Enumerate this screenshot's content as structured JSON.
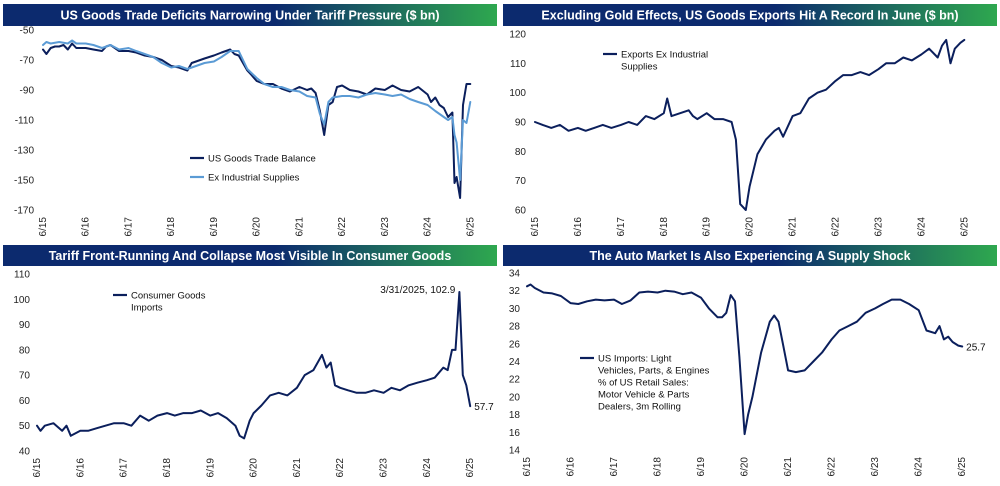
{
  "colors": {
    "title_bg_start": "#0c2a6e",
    "title_bg_end": "#2ea84f",
    "navy": "#0b1f5c",
    "light_blue": "#5b9bd5"
  },
  "chart_data": [
    {
      "type": "line",
      "title": "US Goods Trade Deficits Narrowing Under Tariff Pressure ($ bn)",
      "x_tick_labels": [
        "6/15",
        "6/16",
        "6/17",
        "6/18",
        "6/19",
        "6/20",
        "6/21",
        "6/22",
        "6/23",
        "6/24",
        "6/25"
      ],
      "x_range": [
        2015.42,
        2025.6
      ],
      "ylim": [
        -170,
        -50
      ],
      "y_ticks": [
        -50,
        -70,
        -90,
        -110,
        -130,
        -150,
        -170
      ],
      "legend_position": "center-left",
      "series": [
        {
          "name": "US Goods Trade Balance",
          "color": "navy",
          "x": [
            2015.42,
            2015.5,
            2015.6,
            2015.7,
            2015.8,
            2015.9,
            2016.0,
            2016.1,
            2016.2,
            2016.3,
            2016.42,
            2016.6,
            2016.8,
            2016.9,
            2017.0,
            2017.2,
            2017.42,
            2017.6,
            2017.8,
            2018.0,
            2018.2,
            2018.42,
            2018.6,
            2018.8,
            2018.9,
            2019.0,
            2019.2,
            2019.42,
            2019.6,
            2019.8,
            2019.9,
            2020.0,
            2020.2,
            2020.3,
            2020.42,
            2020.6,
            2020.8,
            2021.0,
            2021.2,
            2021.42,
            2021.6,
            2021.7,
            2021.8,
            2021.9,
            2022.0,
            2022.1,
            2022.2,
            2022.3,
            2022.42,
            2022.6,
            2022.8,
            2023.0,
            2023.2,
            2023.42,
            2023.6,
            2023.8,
            2024.0,
            2024.2,
            2024.42,
            2024.5,
            2024.6,
            2024.7,
            2024.8,
            2024.9,
            2025.0,
            2025.05,
            2025.1,
            2025.18,
            2025.25,
            2025.33,
            2025.42
          ],
          "values": [
            -63,
            -66,
            -62,
            -61,
            -61,
            -60,
            -63,
            -59,
            -62,
            -62,
            -62,
            -63,
            -64,
            -61,
            -60,
            -64,
            -64,
            -65,
            -67,
            -68,
            -70,
            -74,
            -75,
            -77,
            -72,
            -71,
            -69,
            -67,
            -65,
            -63,
            -66,
            -67,
            -77,
            -80,
            -84,
            -86,
            -86,
            -89,
            -91,
            -88,
            -90,
            -89,
            -92,
            -104,
            -120,
            -100,
            -98,
            -88,
            -87,
            -90,
            -91,
            -93,
            -89,
            -90,
            -87,
            -90,
            -91,
            -88,
            -93,
            -98,
            -95,
            -100,
            -102,
            -108,
            -105,
            -152,
            -148,
            -162,
            -100,
            -86,
            -86
          ]
        },
        {
          "name": "Ex Industrial Supplies",
          "color": "light_blue",
          "x": [
            2015.42,
            2015.5,
            2015.6,
            2015.8,
            2016.0,
            2016.1,
            2016.2,
            2016.42,
            2016.6,
            2016.8,
            2017.0,
            2017.2,
            2017.42,
            2017.6,
            2017.8,
            2018.0,
            2018.2,
            2018.42,
            2018.6,
            2018.8,
            2019.0,
            2019.2,
            2019.42,
            2019.6,
            2019.8,
            2020.0,
            2020.2,
            2020.42,
            2020.6,
            2020.8,
            2021.0,
            2021.2,
            2021.42,
            2021.6,
            2021.8,
            2021.9,
            2022.0,
            2022.1,
            2022.2,
            2022.42,
            2022.6,
            2022.8,
            2023.0,
            2023.2,
            2023.42,
            2023.6,
            2023.8,
            2024.0,
            2024.2,
            2024.42,
            2024.6,
            2024.8,
            2024.9,
            2025.0,
            2025.05,
            2025.1,
            2025.18,
            2025.25,
            2025.33,
            2025.42
          ],
          "values": [
            -60,
            -58,
            -59,
            -58,
            -59,
            -57,
            -59,
            -59,
            -60,
            -62,
            -60,
            -63,
            -62,
            -64,
            -66,
            -68,
            -72,
            -75,
            -74,
            -76,
            -74,
            -72,
            -71,
            -68,
            -64,
            -64,
            -76,
            -82,
            -86,
            -88,
            -88,
            -90,
            -91,
            -94,
            -95,
            -106,
            -113,
            -98,
            -95,
            -94,
            -94,
            -95,
            -93,
            -92,
            -93,
            -94,
            -93,
            -96,
            -98,
            -100,
            -104,
            -108,
            -110,
            -108,
            -120,
            -125,
            -150,
            -110,
            -112,
            -98
          ]
        }
      ],
      "annotations": []
    },
    {
      "type": "line",
      "title": "Excluding Gold Effects, US Goods Exports Hit A Record In June ($ bn)",
      "x_tick_labels": [
        "6/15",
        "6/16",
        "6/17",
        "6/18",
        "6/19",
        "6/20",
        "6/21",
        "6/22",
        "6/23",
        "6/24",
        "6/25"
      ],
      "x_range": [
        2015.42,
        2025.6
      ],
      "ylim": [
        60,
        120
      ],
      "y_ticks": [
        120,
        110,
        100,
        90,
        80,
        70,
        60
      ],
      "legend_position": "top-left",
      "series": [
        {
          "name": "Exports Ex Industrial Supplies",
          "color": "navy",
          "x": [
            2015.42,
            2015.6,
            2015.8,
            2016.0,
            2016.2,
            2016.42,
            2016.6,
            2016.8,
            2017.0,
            2017.2,
            2017.42,
            2017.6,
            2017.8,
            2018.0,
            2018.2,
            2018.42,
            2018.5,
            2018.6,
            2018.8,
            2019.0,
            2019.1,
            2019.2,
            2019.42,
            2019.6,
            2019.8,
            2020.0,
            2020.1,
            2020.2,
            2020.33,
            2020.42,
            2020.6,
            2020.8,
            2021.0,
            2021.1,
            2021.2,
            2021.42,
            2021.6,
            2021.8,
            2022.0,
            2022.2,
            2022.42,
            2022.6,
            2022.8,
            2023.0,
            2023.2,
            2023.42,
            2023.6,
            2023.8,
            2024.0,
            2024.2,
            2024.42,
            2024.6,
            2024.8,
            2024.9,
            2025.0,
            2025.1,
            2025.2,
            2025.33,
            2025.42
          ],
          "values": [
            90,
            89,
            88,
            89,
            87,
            88,
            87,
            88,
            89,
            88,
            89,
            90,
            89,
            92,
            91,
            93,
            98,
            92,
            93,
            94,
            92,
            91,
            93,
            91,
            91,
            90,
            84,
            62,
            60,
            68,
            79,
            84,
            87,
            88,
            85,
            92,
            93,
            98,
            100,
            101,
            104,
            106,
            106,
            107,
            106,
            108,
            110,
            110,
            112,
            111,
            113,
            115,
            112,
            116,
            118,
            110,
            115,
            117,
            118
          ]
        }
      ],
      "annotations": []
    },
    {
      "type": "line",
      "title": "Tariff Front-Running And Collapse Most Visible In Consumer Goods",
      "x_tick_labels": [
        "6/15",
        "6/16",
        "6/17",
        "6/18",
        "6/19",
        "6/20",
        "6/21",
        "6/22",
        "6/23",
        "6/24",
        "6/25"
      ],
      "x_range": [
        2015.42,
        2025.6
      ],
      "ylim": [
        40,
        110
      ],
      "y_ticks": [
        110,
        100,
        90,
        80,
        70,
        60,
        50,
        40
      ],
      "legend_position": "top-left",
      "series": [
        {
          "name": "Consumer Goods Imports",
          "color": "navy",
          "x": [
            2015.42,
            2015.5,
            2015.6,
            2015.8,
            2016.0,
            2016.1,
            2016.2,
            2016.42,
            2016.6,
            2016.8,
            2017.0,
            2017.2,
            2017.42,
            2017.6,
            2017.8,
            2018.0,
            2018.2,
            2018.42,
            2018.6,
            2018.8,
            2019.0,
            2019.2,
            2019.42,
            2019.6,
            2019.8,
            2020.0,
            2020.1,
            2020.2,
            2020.33,
            2020.42,
            2020.6,
            2020.8,
            2021.0,
            2021.2,
            2021.42,
            2021.6,
            2021.8,
            2022.0,
            2022.1,
            2022.2,
            2022.3,
            2022.42,
            2022.6,
            2022.8,
            2023.0,
            2023.2,
            2023.42,
            2023.6,
            2023.8,
            2024.0,
            2024.2,
            2024.42,
            2024.6,
            2024.8,
            2024.9,
            2025.0,
            2025.08,
            2025.17,
            2025.25,
            2025.33,
            2025.42
          ],
          "values": [
            50,
            48,
            50,
            51,
            48,
            50,
            46,
            48,
            48,
            49,
            50,
            51,
            51,
            50,
            54,
            52,
            54,
            55,
            54,
            55,
            55,
            56,
            54,
            55,
            53,
            50,
            46,
            45,
            52,
            55,
            58,
            62,
            63,
            62,
            65,
            70,
            72,
            78,
            73,
            75,
            66,
            65,
            64,
            63,
            63,
            64,
            63,
            65,
            64,
            66,
            67,
            68,
            69,
            73,
            72,
            80,
            80,
            102.9,
            70,
            66,
            57.7
          ]
        }
      ],
      "annotations": [
        "3/31/2025, 102.9",
        "57.7"
      ]
    },
    {
      "type": "line",
      "title": "The Auto Market Is Also Experiencing A Supply Shock",
      "x_tick_labels": [
        "6/15",
        "6/16",
        "6/17",
        "6/18",
        "6/19",
        "6/20",
        "6/21",
        "6/22",
        "6/23",
        "6/24",
        "6/25"
      ],
      "x_range": [
        2015.42,
        2025.6
      ],
      "ylim": [
        14,
        34
      ],
      "y_ticks": [
        34,
        32,
        30,
        28,
        26,
        24,
        22,
        20,
        18,
        16,
        14
      ],
      "legend_position": "center-left",
      "series": [
        {
          "name": "US Imports: Light Vehicles, Parts, & Engines % of US Retail Sales: Motor Vehicle & Parts Dealers, 3m Rolling",
          "color": "navy",
          "x": [
            2015.42,
            2015.5,
            2015.6,
            2015.8,
            2016.0,
            2016.2,
            2016.42,
            2016.6,
            2016.8,
            2017.0,
            2017.2,
            2017.42,
            2017.6,
            2017.8,
            2018.0,
            2018.2,
            2018.42,
            2018.6,
            2018.8,
            2019.0,
            2019.2,
            2019.42,
            2019.6,
            2019.8,
            2019.9,
            2020.0,
            2020.1,
            2020.2,
            2020.3,
            2020.42,
            2020.5,
            2020.6,
            2020.8,
            2021.0,
            2021.1,
            2021.2,
            2021.3,
            2021.42,
            2021.6,
            2021.8,
            2022.0,
            2022.2,
            2022.42,
            2022.6,
            2022.8,
            2023.0,
            2023.2,
            2023.42,
            2023.6,
            2023.8,
            2024.0,
            2024.2,
            2024.42,
            2024.6,
            2024.8,
            2024.9,
            2025.0,
            2025.1,
            2025.2,
            2025.33,
            2025.42
          ],
          "values": [
            32.5,
            32.7,
            32.3,
            31.8,
            31.7,
            31.4,
            30.6,
            30.5,
            30.8,
            31.0,
            30.9,
            31.0,
            30.5,
            30.9,
            31.8,
            31.9,
            31.8,
            32.0,
            31.9,
            31.6,
            31.8,
            31.2,
            30.0,
            29.0,
            29.0,
            29.5,
            31.5,
            30.8,
            24.5,
            15.8,
            18.0,
            20.0,
            25.0,
            28.5,
            29.2,
            28.5,
            26.0,
            23.0,
            22.8,
            23.0,
            24.0,
            25.0,
            26.5,
            27.5,
            28.0,
            28.5,
            29.5,
            30.0,
            30.5,
            31.0,
            31.0,
            30.5,
            29.8,
            27.5,
            27.2,
            28.0,
            26.5,
            26.8,
            26.2,
            25.8,
            25.7
          ]
        }
      ],
      "annotations": [
        "25.7"
      ]
    }
  ]
}
